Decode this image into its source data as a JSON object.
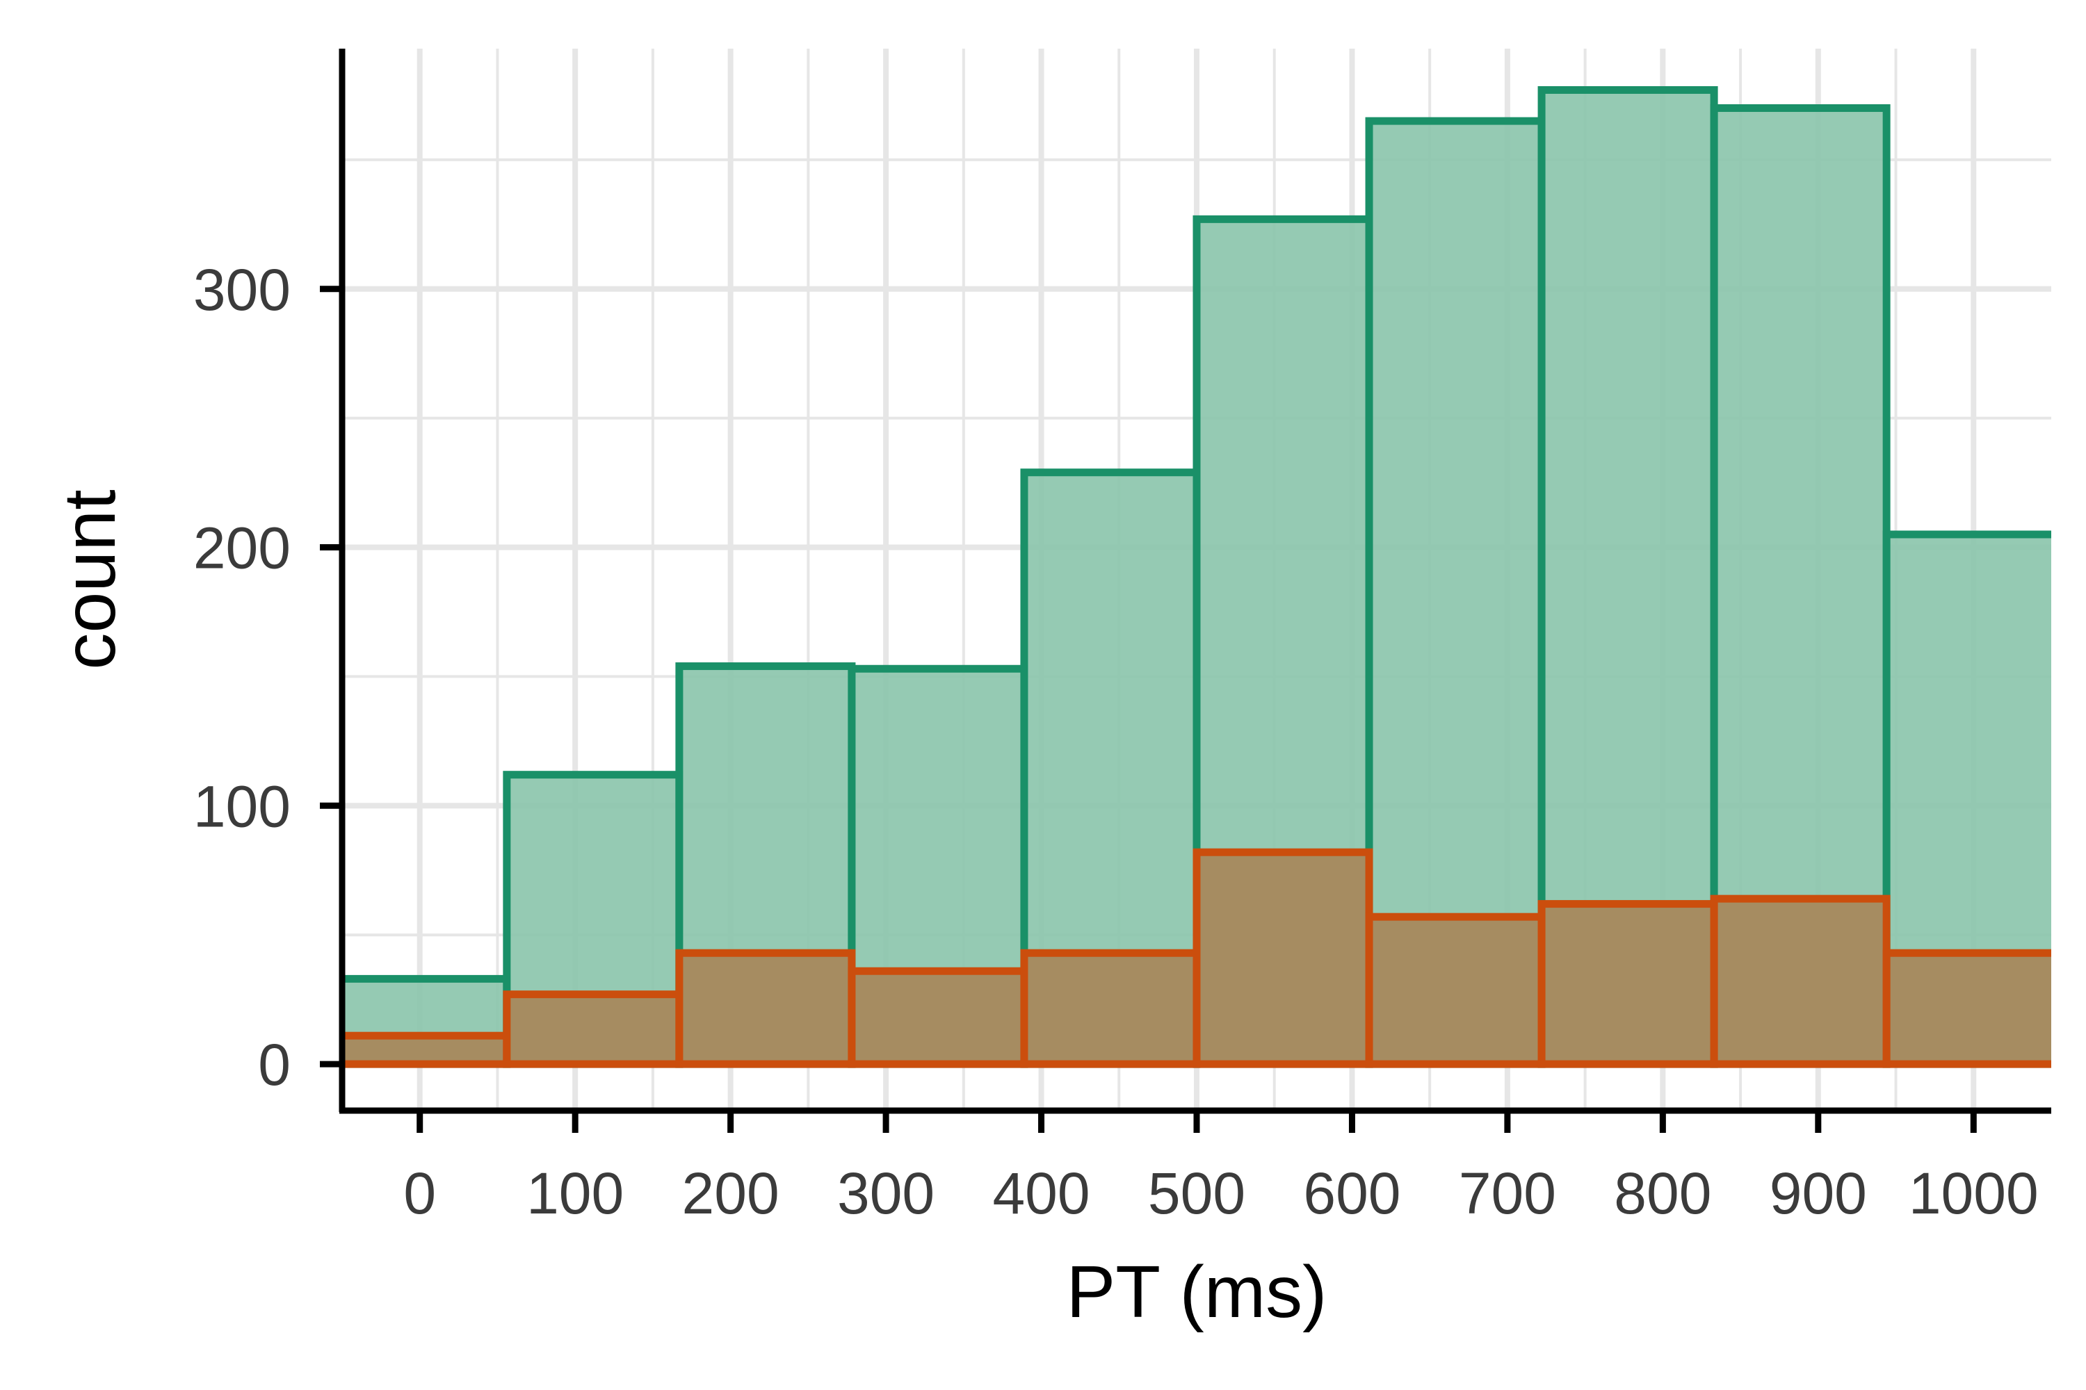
{
  "chart_data": {
    "type": "bar",
    "subtype": "overlaid-histogram",
    "title": "",
    "xlabel": "PT (ms)",
    "ylabel": "count",
    "xlim": [
      -50,
      1050
    ],
    "ylim": [
      -18,
      393
    ],
    "x_ticks": [
      0,
      100,
      200,
      300,
      400,
      500,
      600,
      700,
      800,
      900,
      1000
    ],
    "x_tick_labels": [
      "0",
      "100",
      "200",
      "300",
      "400",
      "500",
      "600",
      "700",
      "800",
      "900",
      "1000"
    ],
    "x_minor_gridlines": [
      50,
      150,
      250,
      350,
      450,
      550,
      650,
      750,
      850,
      950
    ],
    "y_ticks": [
      0,
      100,
      200,
      300
    ],
    "y_tick_labels": [
      "0",
      "100",
      "200",
      "300"
    ],
    "y_minor_gridlines": [
      50,
      150,
      250,
      350
    ],
    "grid": true,
    "legend": "none",
    "bin_edges": [
      -56,
      56,
      167,
      278,
      389,
      500,
      611,
      722,
      833,
      944,
      1056
    ],
    "series": [
      {
        "values": [
          33,
          112,
          154,
          153,
          229,
          327,
          365,
          377,
          370,
          205
        ],
        "fill": "#8cc6ad",
        "stroke": "#1a9068"
      },
      {
        "values": [
          11,
          27,
          43,
          36,
          43,
          82,
          57,
          62,
          64,
          43
        ],
        "fill": "#a7875a",
        "stroke": "#cb4e0d"
      }
    ],
    "axis_color": "#000000",
    "grid_color": "#e6e6e6"
  }
}
